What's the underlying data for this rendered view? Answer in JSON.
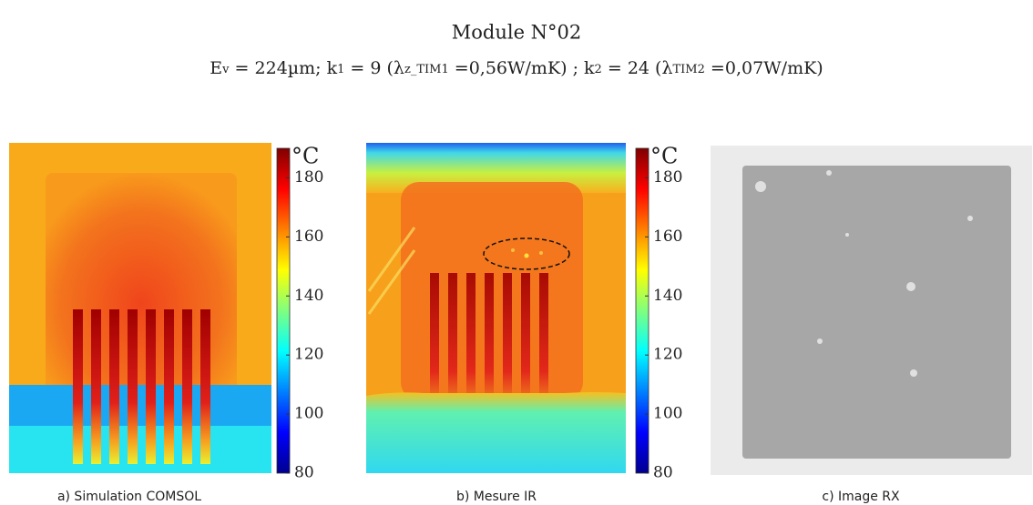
{
  "header": {
    "title": "Module N°02",
    "subtitle": [
      "E",
      "v",
      " = 224µm; k",
      "1",
      " = 9 (λ",
      "z_TIM1",
      " =0,56W/mK)  ; k",
      "2",
      " = 24 (λ",
      "TIM2",
      " =0,07W/mK)"
    ]
  },
  "panels": [
    {
      "caption": "a) Simulation COMSOL",
      "colorbar": {
        "unit": "°C",
        "lim": [
          80,
          190
        ],
        "ticks": [
          80,
          100,
          120,
          140,
          160,
          180
        ]
      }
    },
    {
      "caption": "b) Mesure IR",
      "colorbar": {
        "unit": "°C",
        "lim": [
          80,
          190
        ],
        "ticks": [
          80,
          100,
          120,
          140,
          160,
          180
        ]
      }
    },
    {
      "caption": "c) Image RX"
    }
  ]
}
